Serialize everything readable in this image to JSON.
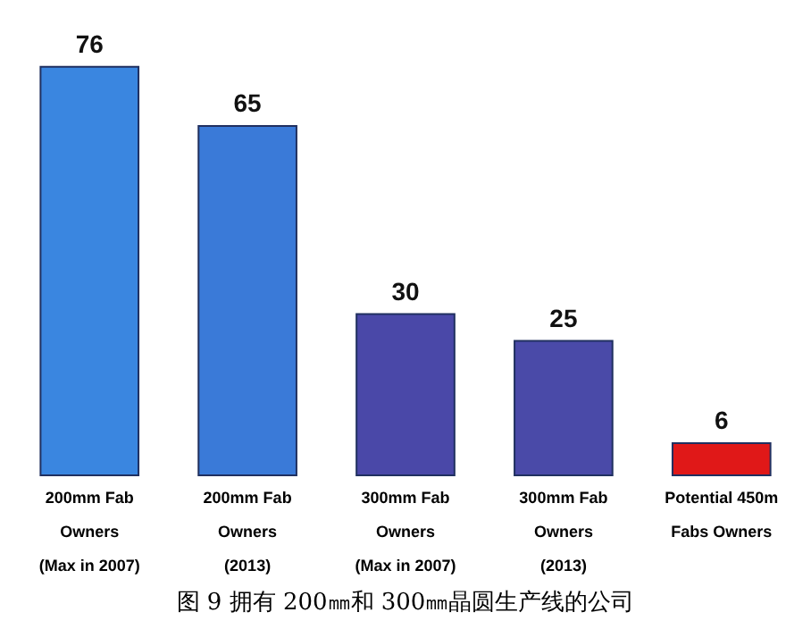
{
  "chart_data": {
    "type": "bar",
    "title": "图 9 拥有 200㎜和 300㎜晶圆生产线的公司",
    "categories": [
      "200mm Fab\nOwners\n(Max in 2007)",
      "200mm Fab\nOwners\n(2013)",
      "300mm Fab\nOwners\n(Max in 2007)",
      "300mm Fab\nOwners\n(2013)",
      "Potential 450m\nFabs Owners"
    ],
    "values": [
      76,
      65,
      30,
      25,
      6
    ],
    "colors": [
      "#3a86e0",
      "#3a7ad8",
      "#4a48a8",
      "#4a4aa8",
      "#e01818"
    ],
    "data_labels": true
  }
}
